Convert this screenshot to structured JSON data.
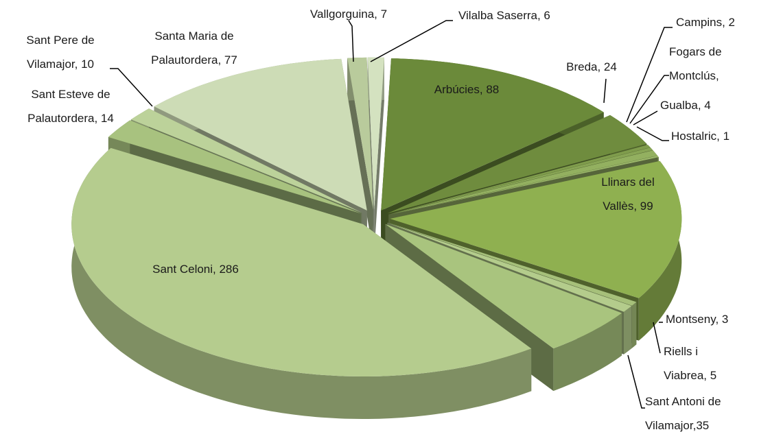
{
  "chart_data": {
    "type": "pie3d",
    "labels": [
      "Arbúcies, 88",
      "Breda, 24",
      "Campins, 2",
      "Fogars de\nMontclús,",
      "Gualba, 4",
      "Hostalric, 1",
      "Llinars del\nVallès, 99",
      "Montseny, 3",
      "Riells i\nViabrea, 5",
      "Sant Antoni de\nVilamajor,35",
      "Sant Celoni, 286",
      "Sant Esteve de\nPalautordera, 14",
      "Sant Pere de\nVilamajor, 10",
      "Santa Maria de\nPalautordera, 77",
      "Vallgorguina, 7",
      "Vilalba Saserra, 6"
    ],
    "values": [
      88,
      24,
      2,
      2,
      4,
      1,
      99,
      3,
      5,
      35,
      286,
      14,
      10,
      77,
      7,
      6
    ],
    "colors": [
      "#6b8a3a",
      "#6f8c3e",
      "#7f9c4c",
      "#88a555",
      "#93b060",
      "#9cb86a",
      "#8fb050",
      "#a6c07a",
      "#b4cc8c",
      "#a9c47e",
      "#b5cc8e",
      "#a8c27f",
      "#bcd29a",
      "#cddcb6",
      "#b9cb9c",
      "#d4e2c0"
    ]
  }
}
